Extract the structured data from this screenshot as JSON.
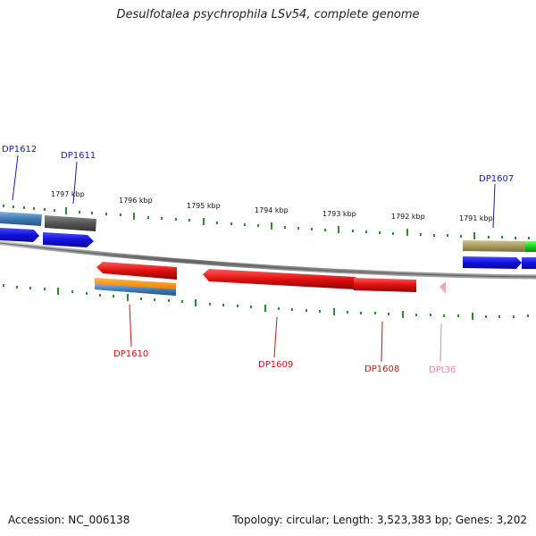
{
  "header": {
    "title": "Desulfotalea psychrophila LSv54, complete genome"
  },
  "footer": {
    "accession": "Accession: NC_006138",
    "summary": "Topology: circular; Length: 3,523,383 bp; Genes: 3,202"
  },
  "ruler": {
    "ticks": [
      "1797 kbp",
      "1796 kbp",
      "1795 kbp",
      "1794 kbp",
      "1793 kbp",
      "1792 kbp",
      "1791 kbp"
    ]
  },
  "genes": {
    "DP1612": "DP1612",
    "DP1611": "DP1611",
    "DP1607": "DP1607",
    "DP1610": "DP1610",
    "DP1609": "DP1609",
    "DP1608": "DP1608",
    "DPt36": "DPt36"
  },
  "colors": {
    "backbone": "#8c8c8c",
    "tick": "#2e8b2e",
    "forward_label": "#1a1aa6",
    "reverse_label": "#c81414",
    "trna_label": "#f080b8",
    "cds_blue": "#1010e0",
    "cds_red": "#e01010",
    "trna_pink": "#f4a0c8"
  }
}
